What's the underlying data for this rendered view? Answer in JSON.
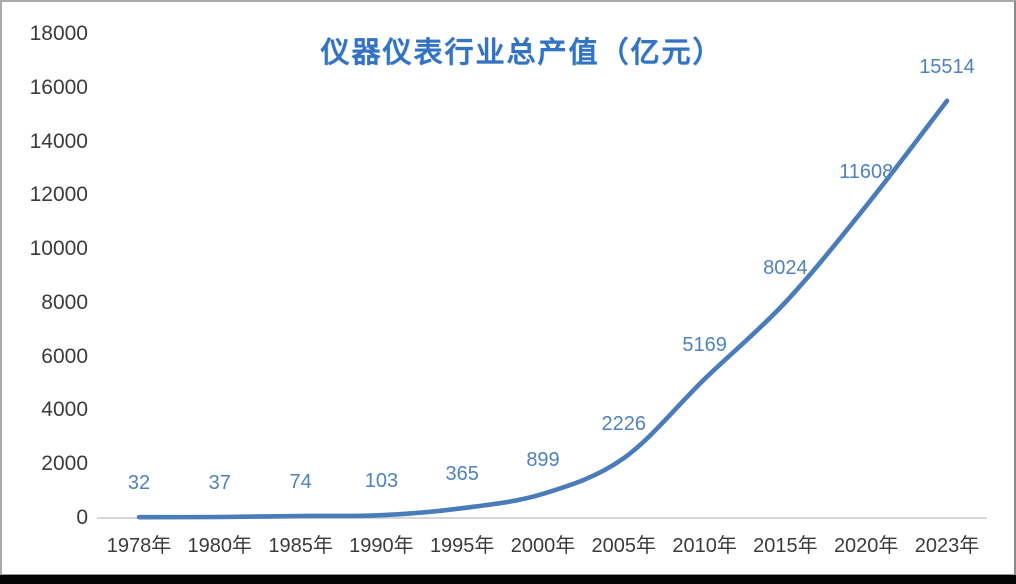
{
  "title": "仪器仪表行业总产值（亿元）",
  "chart_data": {
    "type": "line",
    "title": "仪器仪表行业总产值（亿元）",
    "categories": [
      "1978年",
      "1980年",
      "1985年",
      "1990年",
      "1995年",
      "2000年",
      "2005年",
      "2010年",
      "2015年",
      "2020年",
      "2023年"
    ],
    "values": [
      32,
      37,
      74,
      103,
      365,
      899,
      2226,
      5169,
      8024,
      11608,
      15514
    ],
    "series": [
      {
        "name": "仪器仪表行业总产值",
        "values": [
          32,
          37,
          74,
          103,
          365,
          899,
          2226,
          5169,
          8024,
          11608,
          15514
        ]
      }
    ],
    "xlabel": "",
    "ylabel": "",
    "ylim": [
      0,
      18000
    ],
    "y_ticks": [
      0,
      2000,
      4000,
      6000,
      8000,
      10000,
      12000,
      14000,
      16000,
      18000
    ],
    "grid": false,
    "legend_position": "none",
    "smooth_line": true,
    "data_labels_shown": true
  },
  "colors": {
    "line": "#4a7cba",
    "data_label": "#4d82be",
    "title": "#3273c2",
    "axis_text": "#3b3b3b",
    "baseline": "#c9c9c9",
    "frame_border": "#aaaaaa",
    "bottom_bar": "#050505",
    "background": "#ffffff"
  }
}
